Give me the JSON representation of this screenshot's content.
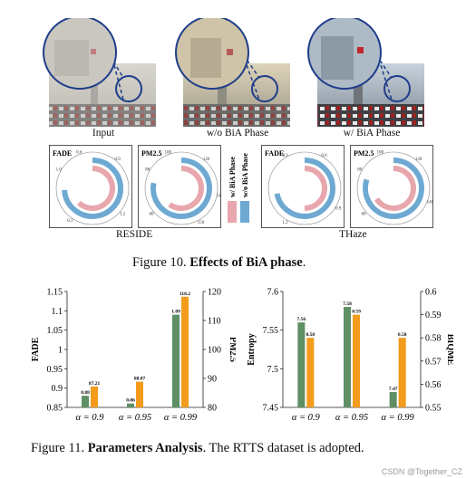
{
  "figure10": {
    "photos": [
      {
        "label": "Input"
      },
      {
        "label": "w/o BiA Phase"
      },
      {
        "label": "w/ BiA Phase"
      }
    ],
    "gauges": [
      {
        "title": "FADE",
        "ticks": [
          "0.6",
          "0.9",
          "1.2",
          "0.3",
          "1.0"
        ],
        "outer": {
          "fraction": 0.74
        },
        "inner": {
          "fraction": 0.62
        }
      },
      {
        "title": "PM2.5",
        "ticks": [
          "100",
          "120",
          "140",
          "150",
          "60",
          "80"
        ],
        "outer": {
          "fraction": 0.78
        },
        "inner": {
          "fraction": 0.6
        }
      },
      {
        "title": "FADE",
        "ticks": [
          "0.3",
          "0.6",
          "0.9",
          "1.2"
        ],
        "outer": {
          "fraction": 0.72
        },
        "inner": {
          "fraction": 0.5
        }
      },
      {
        "title": "PM2.5",
        "ticks": [
          "100",
          "120",
          "140",
          "60",
          "80"
        ],
        "outer": {
          "fraction": 0.8
        },
        "inner": {
          "fraction": 0.66
        }
      }
    ],
    "legend": {
      "inner_label": "w/ BiA Phase",
      "outer_label": "w/o BiA Phase"
    },
    "group_labels": {
      "left": "RESIDE",
      "right": "THaze"
    },
    "caption_prefix": "Figure 10. ",
    "caption_bold": "Effects of BiA phase",
    "caption_suffix": "."
  },
  "colors": {
    "pink": "#e8a6ad",
    "blue": "#6ea9d2",
    "green": "#5f8f64",
    "orange": "#f29b1c"
  },
  "chart_data": [
    {
      "type": "bar",
      "categories": [
        "α = 0.9",
        "α = 0.95",
        "α = 0.99"
      ],
      "series": [
        {
          "values": [
            0.88,
            0.86,
            1.09
          ],
          "axis": "left"
        },
        {
          "values": [
            87.21,
            88.87,
            118.2
          ],
          "axis": "right"
        }
      ],
      "data_labels": [
        [
          "0.88",
          "0.86",
          "1.09"
        ],
        [
          "87.21",
          "88.87",
          "118.2"
        ]
      ],
      "ylabel": "FADE",
      "ylim": [
        0.85,
        1.15
      ],
      "yticks": [
        "0.85",
        "0.9",
        "0.95",
        "1",
        "1.05",
        "1.1",
        "1.15"
      ],
      "ylabel_right": "PM2.5",
      "ylim_right": [
        80,
        120
      ],
      "yticks_right": [
        "80",
        "90",
        "100",
        "110",
        "120"
      ]
    },
    {
      "type": "bar",
      "categories": [
        "α = 0.9",
        "α = 0.95",
        "α = 0.99"
      ],
      "series": [
        {
          "values": [
            7.56,
            7.58,
            7.47
          ],
          "axis": "left"
        },
        {
          "values": [
            0.58,
            0.59,
            0.58
          ],
          "axis": "right"
        }
      ],
      "data_labels": [
        [
          "7.56",
          "7.58",
          "7.47"
        ],
        [
          "0.58",
          "0.59",
          "0.58"
        ]
      ],
      "ylabel": "Entropy",
      "ylim": [
        7.45,
        7.6
      ],
      "yticks": [
        "7.45",
        "7.5",
        "7.55",
        "7.6"
      ],
      "ylabel_right": "BIQME",
      "ylim_right": [
        0.55,
        0.6
      ],
      "yticks_right": [
        "0.55",
        "0.56",
        "0.57",
        "0.58",
        "0.59",
        "0.6"
      ]
    }
  ],
  "figure11": {
    "caption_prefix": "Figure 11. ",
    "caption_bold": "Parameters Analysis",
    "caption_suffix": ". The RTTS dataset is adopted."
  },
  "watermark": "CSDN @Together_CZ"
}
